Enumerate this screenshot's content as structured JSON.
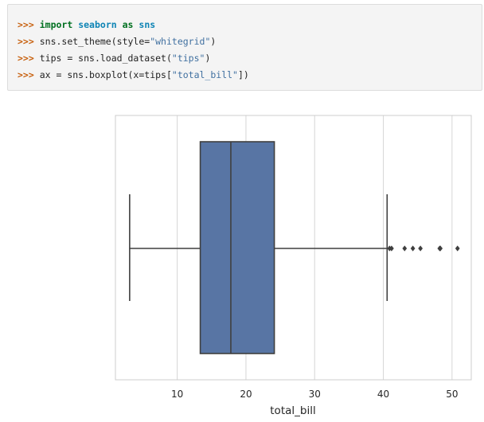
{
  "code": {
    "prompt": ">>>",
    "lines": [
      {
        "tokens": [
          {
            "t": "kw",
            "v": "import"
          },
          {
            "t": "sp",
            "v": " "
          },
          {
            "t": "mod",
            "v": "seaborn"
          },
          {
            "t": "sp",
            "v": " "
          },
          {
            "t": "kw",
            "v": "as"
          },
          {
            "t": "sp",
            "v": " "
          },
          {
            "t": "mod",
            "v": "sns"
          }
        ]
      },
      {
        "tokens": [
          {
            "t": "txt",
            "v": "sns.set_theme(style="
          },
          {
            "t": "str",
            "v": "\"whitegrid\""
          },
          {
            "t": "txt",
            "v": ")"
          }
        ]
      },
      {
        "tokens": [
          {
            "t": "txt",
            "v": "tips = sns.load_dataset("
          },
          {
            "t": "str",
            "v": "\"tips\""
          },
          {
            "t": "txt",
            "v": ")"
          }
        ]
      },
      {
        "tokens": [
          {
            "t": "txt",
            "v": "ax = sns.boxplot(x=tips["
          },
          {
            "t": "str",
            "v": "\"total_bill\""
          },
          {
            "t": "txt",
            "v": "])"
          }
        ]
      }
    ]
  },
  "colors": {
    "box_fill": "#5875a4",
    "line": "#3f3f3f",
    "grid": "#d6d6d6",
    "frame": "#cccccc"
  },
  "chart_data": {
    "type": "box",
    "orientation": "horizontal",
    "xlabel": "total_bill",
    "xlim": [
      1.0,
      52.8
    ],
    "xticks": [
      10,
      20,
      30,
      40,
      50
    ],
    "grid": "vertical",
    "box": {
      "whisker_low": 3.07,
      "q1": 13.35,
      "median": 17.8,
      "q3": 24.13,
      "whisker_high": 40.55
    },
    "outliers": [
      40.9,
      41.2,
      43.1,
      44.3,
      45.4,
      48.2,
      48.3,
      50.8
    ]
  }
}
